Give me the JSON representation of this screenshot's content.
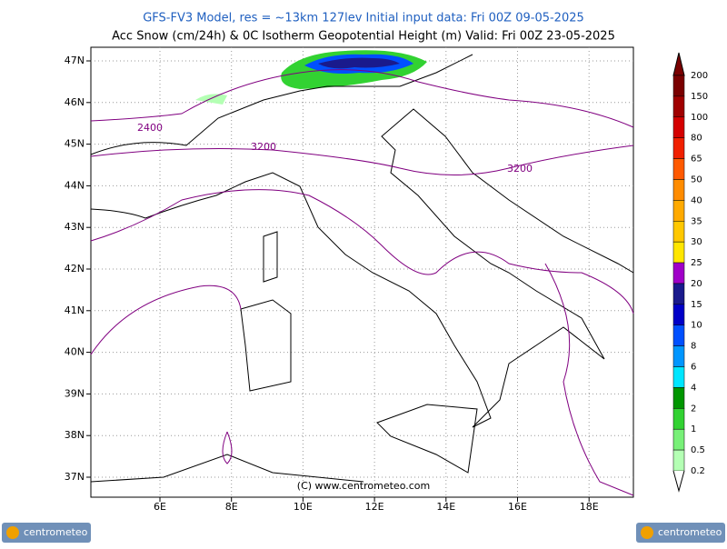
{
  "header": {
    "line1": "GFS-FV3 Model, res = ~13km 127lev    Initial input data: Fri 00Z 09-05-2025",
    "line2": "Acc Snow (cm/24h) & 0C Isotherm Geopotential Height (m)  Valid: Fri 00Z 23-05-2025"
  },
  "map": {
    "lat_labels": [
      "47N",
      "46N",
      "45N",
      "44N",
      "43N",
      "42N",
      "41N",
      "40N",
      "39N",
      "38N",
      "37N"
    ],
    "lon_labels": [
      "6E",
      "8E",
      "10E",
      "12E",
      "14E",
      "16E",
      "18E"
    ],
    "contour_labels": [
      "2400",
      "3200",
      "3200"
    ],
    "copyright": "(C) www.centrometeo.com"
  },
  "colorbar": {
    "labels": [
      200,
      150,
      100,
      80,
      65,
      50,
      40,
      35,
      30,
      25,
      20,
      15,
      10,
      8,
      6,
      4,
      2,
      1,
      0.5,
      0.2
    ],
    "colors": [
      "#7a0000",
      "#a00000",
      "#d40000",
      "#f02000",
      "#ff5a00",
      "#ff8c00",
      "#ffaa00",
      "#ffc800",
      "#ffe600",
      "#a000c8",
      "#1a1a8c",
      "#0000c8",
      "#0050ff",
      "#0096ff",
      "#00e6ff",
      "#009600",
      "#32d232",
      "#78f078",
      "#b4ffb4"
    ]
  },
  "logos": {
    "left": "centrometeo",
    "right": "centrometeo"
  }
}
